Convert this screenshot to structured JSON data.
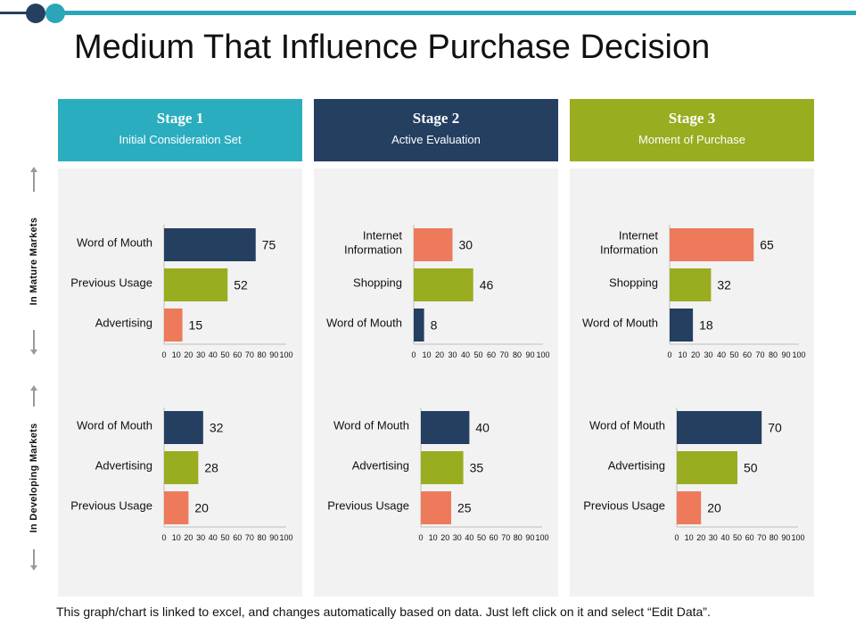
{
  "title": "Medium That Influence Purchase Decision",
  "footer": "This graph/chart is linked to excel, and changes automatically based on data. Just left click on it and select “Edit Data”.",
  "row_labels": [
    "In Mature Markets",
    "In Developing Markets"
  ],
  "stages": [
    {
      "name": "Stage 1",
      "subtitle": "Initial Consideration Set",
      "color": "#2aaebf"
    },
    {
      "name": "Stage 2",
      "subtitle": "Active Evaluation",
      "color": "#243f60"
    },
    {
      "name": "Stage 3",
      "subtitle": "Moment of Purchase",
      "color": "#9aac1f"
    }
  ],
  "colors": {
    "navy": "#243f60",
    "olive": "#9aac1f",
    "salmon": "#ee7a5c"
  },
  "chart_data": [
    {
      "type": "bar",
      "orientation": "horizontal",
      "stage": "Stage 1",
      "market": "In Mature Markets",
      "categories": [
        "Word of Mouth",
        "Previous Usage",
        "Advertising"
      ],
      "values": [
        75,
        52,
        15
      ],
      "bar_colors": [
        "navy",
        "olive",
        "salmon"
      ],
      "xlim": [
        0,
        100
      ],
      "xticks": [
        0,
        10,
        20,
        30,
        40,
        50,
        60,
        70,
        80,
        90,
        100
      ]
    },
    {
      "type": "bar",
      "orientation": "horizontal",
      "stage": "Stage 2",
      "market": "In Mature Markets",
      "categories": [
        "Internet Information",
        "Shopping",
        "Word of Mouth"
      ],
      "values": [
        30,
        46,
        8
      ],
      "bar_colors": [
        "salmon",
        "olive",
        "navy"
      ],
      "xlim": [
        0,
        100
      ],
      "xticks": [
        0,
        10,
        20,
        30,
        40,
        50,
        60,
        70,
        80,
        90,
        100
      ]
    },
    {
      "type": "bar",
      "orientation": "horizontal",
      "stage": "Stage 3",
      "market": "In Mature Markets",
      "categories": [
        "Internet Information",
        "Shopping",
        "Word of Mouth"
      ],
      "values": [
        65,
        32,
        18
      ],
      "bar_colors": [
        "salmon",
        "olive",
        "navy"
      ],
      "xlim": [
        0,
        100
      ],
      "xticks": [
        0,
        10,
        20,
        30,
        40,
        50,
        60,
        70,
        80,
        90,
        100
      ]
    },
    {
      "type": "bar",
      "orientation": "horizontal",
      "stage": "Stage 1",
      "market": "In Developing Markets",
      "categories": [
        "Word of Mouth",
        "Advertising",
        "Previous Usage"
      ],
      "values": [
        32,
        28,
        20
      ],
      "bar_colors": [
        "navy",
        "olive",
        "salmon"
      ],
      "xlim": [
        0,
        100
      ],
      "xticks": [
        0,
        10,
        20,
        30,
        40,
        50,
        60,
        70,
        80,
        90,
        100
      ]
    },
    {
      "type": "bar",
      "orientation": "horizontal",
      "stage": "Stage 2",
      "market": "In Developing Markets",
      "categories": [
        "Word of Mouth",
        "Advertising",
        "Previous Usage"
      ],
      "values": [
        40,
        35,
        25
      ],
      "bar_colors": [
        "navy",
        "olive",
        "salmon"
      ],
      "xlim": [
        0,
        100
      ],
      "xticks": [
        0,
        10,
        20,
        30,
        40,
        50,
        60,
        70,
        80,
        90,
        100
      ]
    },
    {
      "type": "bar",
      "orientation": "horizontal",
      "stage": "Stage 3",
      "market": "In Developing Markets",
      "categories": [
        "Word of Mouth",
        "Advertising",
        "Previous Usage"
      ],
      "values": [
        70,
        50,
        20
      ],
      "bar_colors": [
        "navy",
        "olive",
        "salmon"
      ],
      "xlim": [
        0,
        100
      ],
      "xticks": [
        0,
        10,
        20,
        30,
        40,
        50,
        60,
        70,
        80,
        90,
        100
      ]
    }
  ]
}
